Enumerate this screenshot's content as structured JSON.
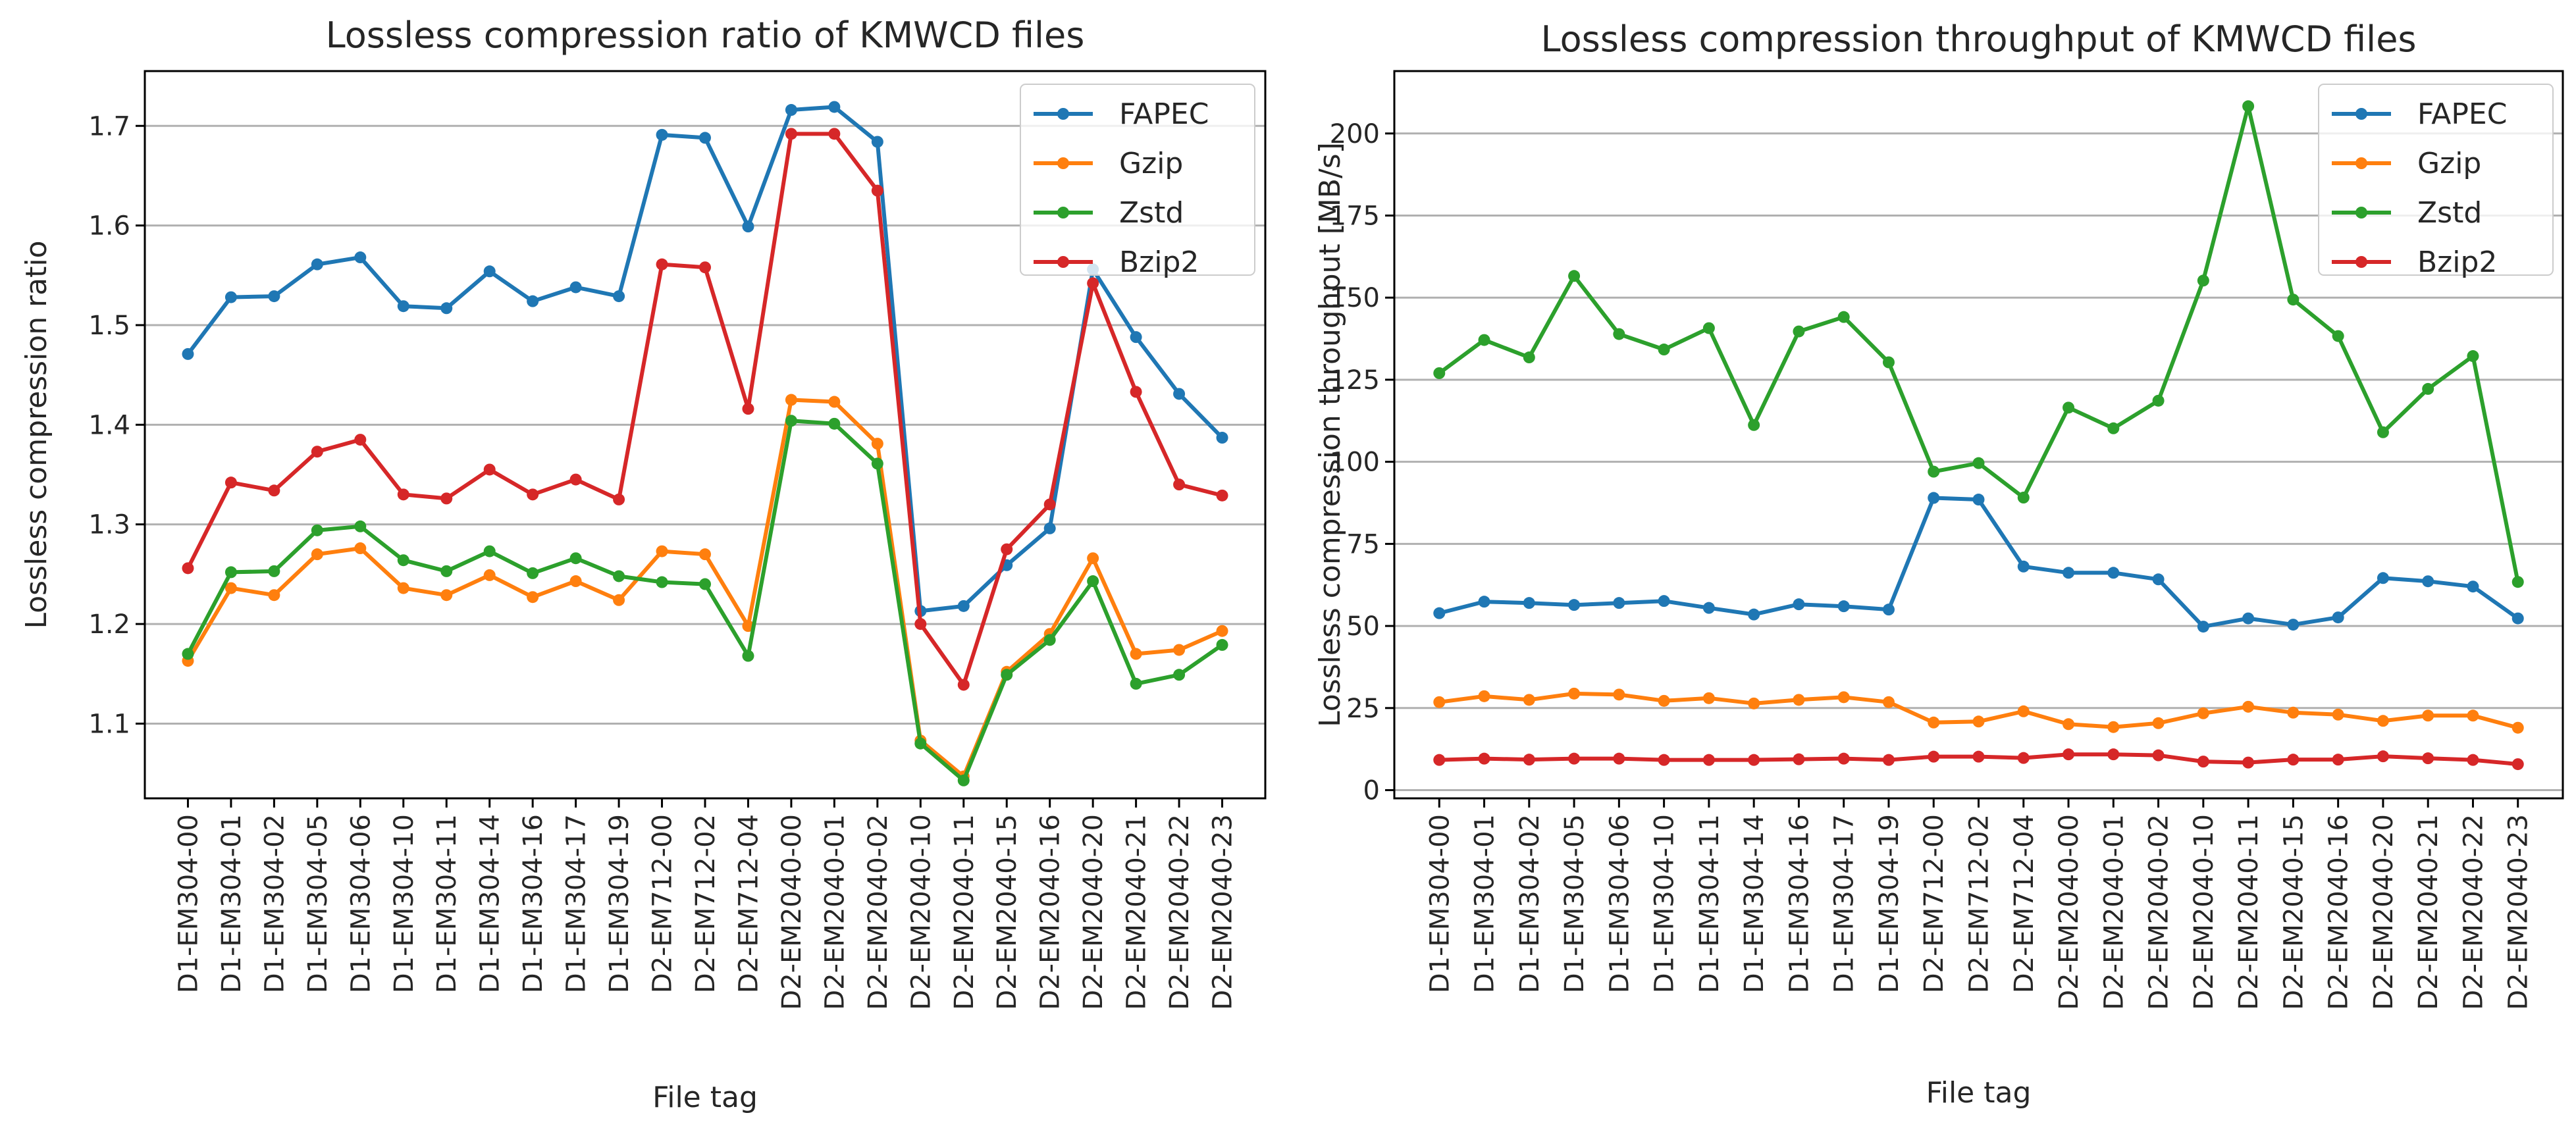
{
  "chart_data": [
    {
      "type": "line",
      "title": "Lossless compression ratio of KMWCD files",
      "xlabel": "File tag",
      "ylabel": "Lossless compression ratio",
      "ylim": [
        1.025,
        1.755
      ],
      "yticks": [
        1.1,
        1.2,
        1.3,
        1.4,
        1.5,
        1.6,
        1.7
      ],
      "ytick_labels": [
        "1.1",
        "1.2",
        "1.3",
        "1.4",
        "1.5",
        "1.6",
        "1.7"
      ],
      "grid": "horizontal",
      "legend_position": "top-right",
      "categories": [
        "D1-EM304-00",
        "D1-EM304-01",
        "D1-EM304-02",
        "D1-EM304-05",
        "D1-EM304-06",
        "D1-EM304-10",
        "D1-EM304-11",
        "D1-EM304-14",
        "D1-EM304-16",
        "D1-EM304-17",
        "D1-EM304-19",
        "D2-EM712-00",
        "D2-EM712-02",
        "D2-EM712-04",
        "D2-EM2040-00",
        "D2-EM2040-01",
        "D2-EM2040-02",
        "D2-EM2040-10",
        "D2-EM2040-11",
        "D2-EM2040-15",
        "D2-EM2040-16",
        "D2-EM2040-20",
        "D2-EM2040-21",
        "D2-EM2040-22",
        "D2-EM2040-23"
      ],
      "series": [
        {
          "name": "FAPEC",
          "color": "#1f77b4",
          "values": [
            1.471,
            1.528,
            1.529,
            1.561,
            1.568,
            1.519,
            1.517,
            1.554,
            1.524,
            1.538,
            1.529,
            1.691,
            1.688,
            1.599,
            1.716,
            1.719,
            1.684,
            1.213,
            1.218,
            1.259,
            1.296,
            1.556,
            1.488,
            1.431,
            1.387
          ]
        },
        {
          "name": "Gzip",
          "color": "#ff7f0e",
          "values": [
            1.163,
            1.236,
            1.229,
            1.27,
            1.276,
            1.236,
            1.229,
            1.249,
            1.227,
            1.243,
            1.224,
            1.273,
            1.27,
            1.198,
            1.425,
            1.423,
            1.381,
            1.083,
            1.047,
            1.152,
            1.19,
            1.266,
            1.17,
            1.174,
            1.193
          ]
        },
        {
          "name": "Zstd",
          "color": "#2ca02c",
          "values": [
            1.17,
            1.252,
            1.253,
            1.294,
            1.298,
            1.264,
            1.253,
            1.273,
            1.251,
            1.266,
            1.248,
            1.242,
            1.24,
            1.168,
            1.404,
            1.401,
            1.361,
            1.08,
            1.043,
            1.149,
            1.184,
            1.243,
            1.14,
            1.149,
            1.179
          ]
        },
        {
          "name": "Bzip2",
          "color": "#d62728",
          "values": [
            1.256,
            1.342,
            1.334,
            1.373,
            1.385,
            1.33,
            1.326,
            1.355,
            1.33,
            1.345,
            1.325,
            1.561,
            1.558,
            1.416,
            1.692,
            1.692,
            1.635,
            1.2,
            1.139,
            1.275,
            1.32,
            1.542,
            1.433,
            1.34,
            1.329
          ]
        }
      ]
    },
    {
      "type": "line",
      "title": "Lossless compression throughput of KMWCD files",
      "xlabel": "File tag",
      "ylabel": "Lossless compression throughput [MB/s]",
      "ylim": [
        -2.5,
        219
      ],
      "yticks": [
        0,
        25,
        50,
        75,
        100,
        125,
        150,
        175,
        200
      ],
      "ytick_labels": [
        "0",
        "25",
        "50",
        "75",
        "100",
        "125",
        "150",
        "175",
        "200"
      ],
      "grid": "horizontal",
      "legend_position": "top-right",
      "categories": [
        "D1-EM304-00",
        "D1-EM304-01",
        "D1-EM304-02",
        "D1-EM304-05",
        "D1-EM304-06",
        "D1-EM304-10",
        "D1-EM304-11",
        "D1-EM304-14",
        "D1-EM304-16",
        "D1-EM304-17",
        "D1-EM304-19",
        "D2-EM712-00",
        "D2-EM712-02",
        "D2-EM712-04",
        "D2-EM2040-00",
        "D2-EM2040-01",
        "D2-EM2040-02",
        "D2-EM2040-10",
        "D2-EM2040-11",
        "D2-EM2040-15",
        "D2-EM2040-16",
        "D2-EM2040-20",
        "D2-EM2040-21",
        "D2-EM2040-22",
        "D2-EM2040-23"
      ],
      "series": [
        {
          "name": "FAPEC",
          "color": "#1f77b4",
          "values": [
            53.9,
            57.4,
            57.0,
            56.4,
            57.0,
            57.6,
            55.5,
            53.5,
            56.6,
            56.0,
            55.0,
            89.0,
            88.5,
            68.1,
            66.2,
            66.2,
            64.2,
            49.8,
            52.3,
            50.4,
            52.6,
            64.6,
            63.6,
            62.0,
            52.3
          ]
        },
        {
          "name": "Gzip",
          "color": "#ff7f0e",
          "values": [
            26.8,
            28.6,
            27.5,
            29.4,
            29.1,
            27.2,
            28.0,
            26.4,
            27.5,
            28.3,
            26.8,
            20.6,
            20.9,
            24.0,
            20.1,
            19.2,
            20.4,
            23.4,
            25.4,
            23.6,
            23.0,
            21.1,
            22.7,
            22.7,
            19.0
          ]
        },
        {
          "name": "Zstd",
          "color": "#2ca02c",
          "values": [
            127.0,
            137.1,
            131.8,
            156.6,
            138.9,
            134.2,
            140.7,
            111.2,
            139.7,
            144.1,
            130.3,
            97.0,
            99.6,
            89.1,
            116.5,
            110.2,
            118.6,
            155.2,
            208.3,
            149.4,
            138.3,
            109.0,
            122.2,
            132.2,
            63.4
          ]
        },
        {
          "name": "Bzip2",
          "color": "#d62728",
          "values": [
            9.2,
            9.6,
            9.3,
            9.6,
            9.6,
            9.2,
            9.2,
            9.2,
            9.4,
            9.6,
            9.2,
            10.2,
            10.2,
            9.8,
            10.9,
            10.9,
            10.6,
            8.7,
            8.4,
            9.3,
            9.3,
            10.3,
            9.7,
            9.2,
            7.9
          ]
        }
      ]
    }
  ]
}
